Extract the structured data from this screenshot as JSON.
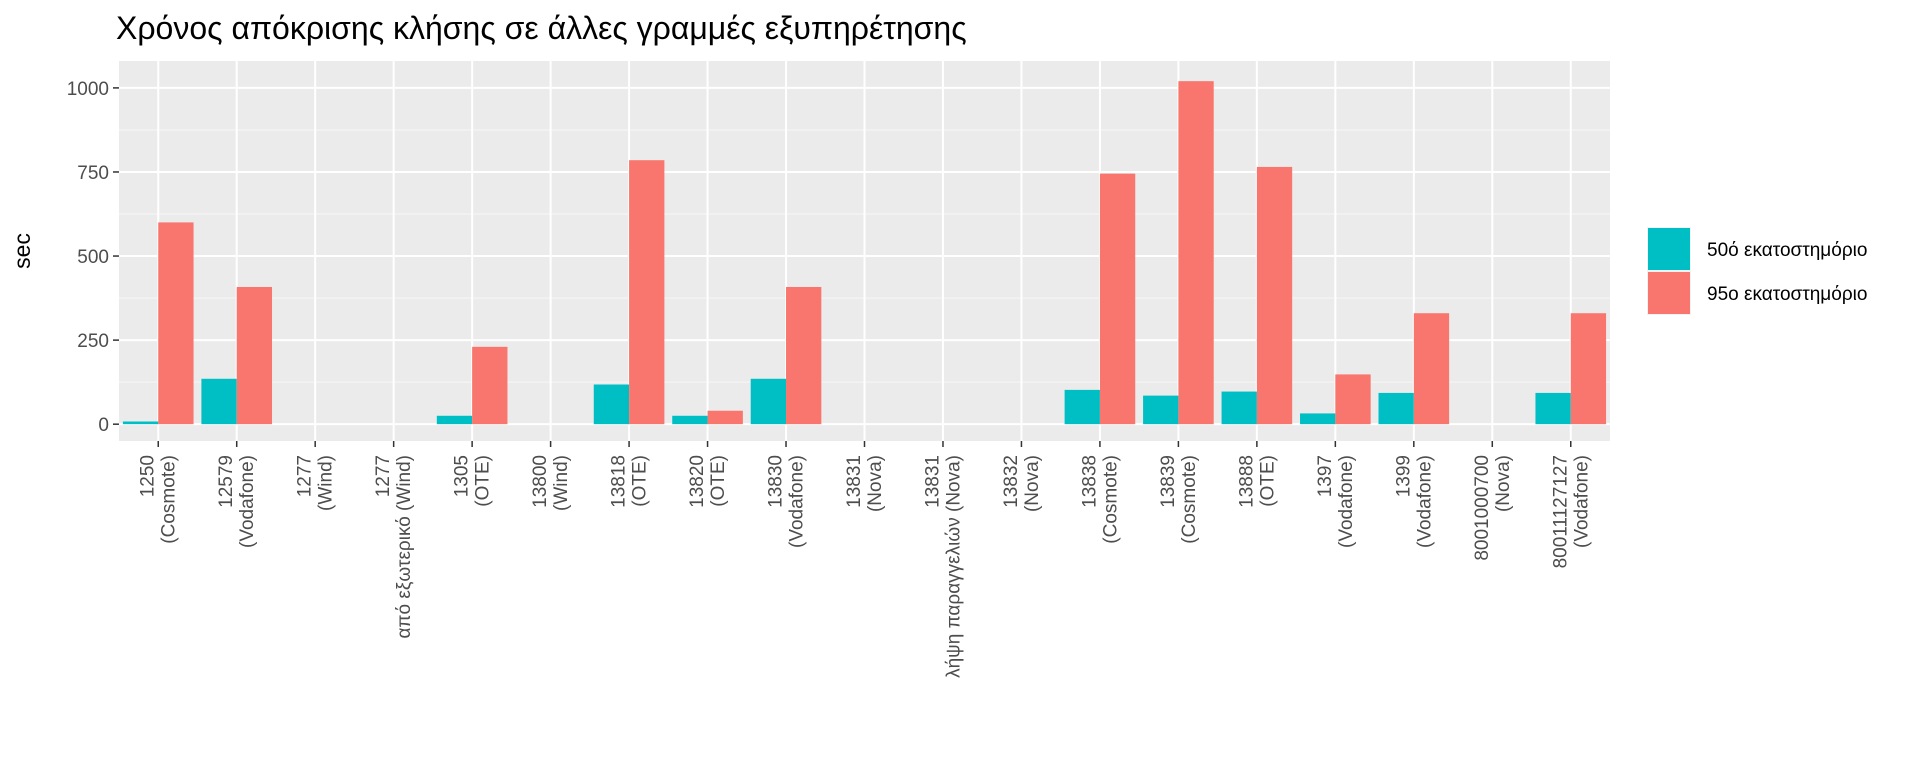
{
  "title": "Χρόνος απόκρισης κλήσης σε άλλες γραμμές εξυπηρέτησης",
  "chart_data": {
    "type": "bar",
    "title": "Χρόνος απόκρισης κλήσης σε άλλες γραμμές εξυπηρέτησης",
    "xlabel": "",
    "ylabel": "sec",
    "ylim": [
      -50,
      1080
    ],
    "yticks": [
      0,
      250,
      500,
      750,
      1000
    ],
    "grid": true,
    "legend_position": "right",
    "categories": [
      [
        "1250",
        "(Cosmote)"
      ],
      [
        "12579",
        "(Vodafone)"
      ],
      [
        "1277",
        "(Wind)"
      ],
      [
        "1277",
        "από εξωτερικό (Wind)"
      ],
      [
        "1305",
        "(OTE)"
      ],
      [
        "13800",
        "(Wind)"
      ],
      [
        "13818",
        "(OTE)"
      ],
      [
        "13820",
        "(OTE)"
      ],
      [
        "13830",
        "(Vodafone)"
      ],
      [
        "13831",
        "(Nova)"
      ],
      [
        "13831",
        "λήψη παραγγελιών (Nova)"
      ],
      [
        "13832",
        "(Nova)"
      ],
      [
        "13838",
        "(Cosmote)"
      ],
      [
        "13839",
        "(Cosmote)"
      ],
      [
        "13888",
        "(OTE)"
      ],
      [
        "1397",
        "(Vodafone)"
      ],
      [
        "1399",
        "(Vodafone)"
      ],
      [
        "8001000700",
        "(Nova)"
      ],
      [
        "80011127127",
        "(Vodafone)"
      ]
    ],
    "series": [
      {
        "name": "50ό εκατοστημόριο",
        "color": "#00BFC4",
        "values": [
          8,
          135,
          null,
          null,
          25,
          null,
          118,
          25,
          135,
          null,
          null,
          null,
          102,
          85,
          97,
          32,
          93,
          null,
          93
        ]
      },
      {
        "name": "95ο εκατοστημόριο",
        "color": "#F8766D",
        "values": [
          600,
          408,
          null,
          null,
          230,
          null,
          785,
          40,
          408,
          null,
          null,
          null,
          745,
          1020,
          765,
          148,
          330,
          null,
          330
        ]
      }
    ]
  }
}
